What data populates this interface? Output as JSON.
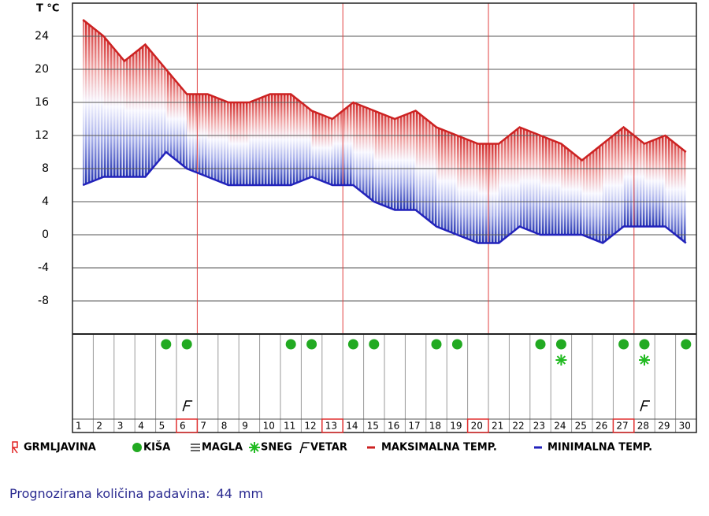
{
  "chart_data": {
    "type": "temperature-band",
    "y_label": "T °C",
    "x": [
      1,
      2,
      3,
      4,
      5,
      6,
      7,
      8,
      9,
      10,
      11,
      12,
      13,
      14,
      15,
      16,
      17,
      18,
      19,
      20,
      21,
      22,
      23,
      24,
      25,
      26,
      27,
      28,
      29,
      30
    ],
    "series": [
      {
        "name": "MAKSIMALNA TEMP.",
        "color": "#cc2222",
        "values": [
          26,
          24,
          21,
          23,
          20,
          17,
          17,
          16,
          16,
          17,
          17,
          15,
          14,
          16,
          15,
          14,
          15,
          13,
          12,
          11,
          11,
          13,
          12,
          11,
          9,
          11,
          13,
          11,
          12,
          10
        ]
      },
      {
        "name": "MINIMALNA TEMP.",
        "color": "#2222bb",
        "values": [
          6,
          7,
          7,
          7,
          10,
          8,
          7,
          6,
          6,
          6,
          6,
          7,
          6,
          6,
          4,
          3,
          3,
          1,
          0,
          -1,
          -1,
          1,
          0,
          0,
          0,
          -1,
          1,
          1,
          1,
          -1
        ]
      }
    ],
    "ylim": [
      -12,
      28
    ],
    "yticks": [
      24,
      20,
      16,
      12,
      8,
      4,
      0,
      -4,
      -8
    ],
    "grid": true,
    "highlight_days": [
      6,
      13,
      20,
      27
    ],
    "rain_days": [
      5,
      6,
      11,
      12,
      14,
      15,
      18,
      19,
      23,
      24,
      27,
      28,
      30
    ],
    "snow_days": [
      24,
      28
    ],
    "wind_days": [
      6,
      28
    ],
    "legend_icons": [
      "GRMLJAVINA",
      "KIŠA",
      "MAGLA",
      "SNEG",
      "VETAR"
    ],
    "footer": {
      "label": "Prognozirana količina padavina:",
      "value": 44,
      "unit": "mm"
    }
  }
}
